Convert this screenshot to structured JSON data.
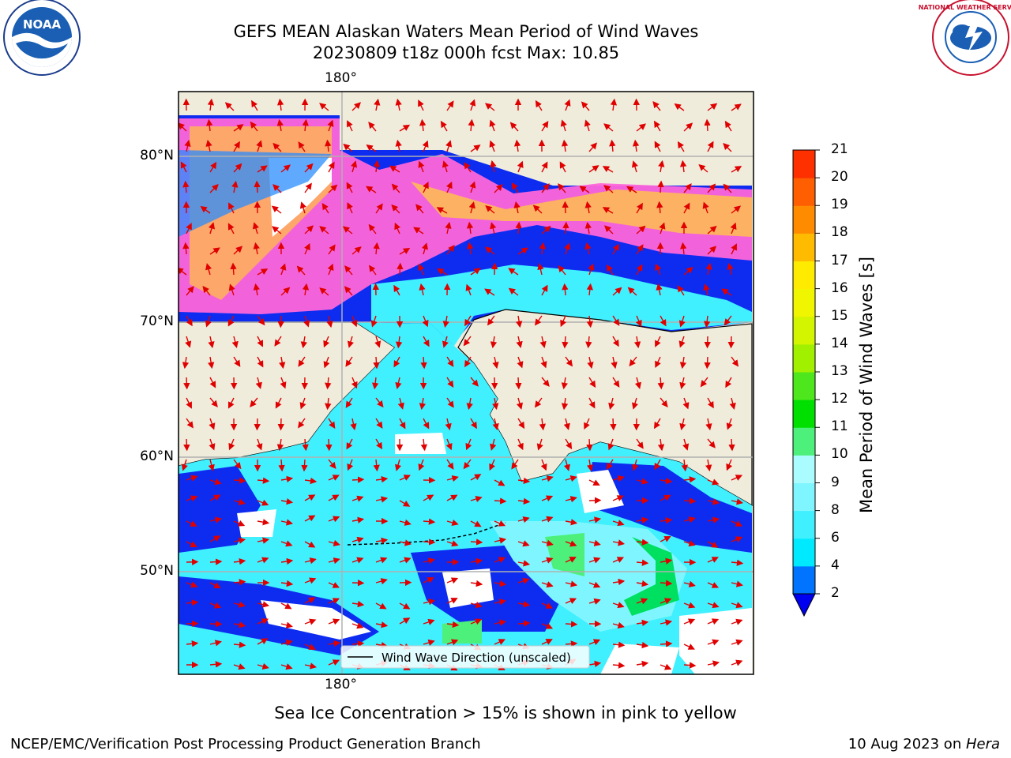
{
  "header": {
    "title_line1": "GEFS MEAN Alaskan Waters Mean Period of Wind Waves",
    "title_line2": "20230809 t18z 000h fcst   Max: 10.85"
  },
  "logos": {
    "left": {
      "icon": "noaa-logo",
      "text": "NOAA"
    },
    "right": {
      "icon": "nws-logo",
      "text": "NATIONAL WEATHER SERVICE"
    }
  },
  "map": {
    "lon_labels": {
      "top": "180°",
      "bottom": "180°"
    },
    "lat_labels": [
      "80°N",
      "70°N",
      "60°N",
      "50°N"
    ],
    "legend": "Wind Wave Direction (unscaled)",
    "arrow_color": "#e00000",
    "land_color": "#efecdc"
  },
  "colorbar": {
    "axis_label": "Mean Period of Wind Waves [s]",
    "ticks": [
      "2",
      "4",
      "6",
      "8",
      "9",
      "10",
      "11",
      "12",
      "13",
      "14",
      "15",
      "16",
      "17",
      "18",
      "19",
      "20",
      "21"
    ],
    "colors": [
      "#0073ff",
      "#00eaff",
      "#40f0ff",
      "#7ff6ff",
      "#aafcff",
      "#4cf07a",
      "#00e000",
      "#4ee61c",
      "#a0f000",
      "#d4f500",
      "#f0f500",
      "#ffeb00",
      "#ffbb00",
      "#ff8c00",
      "#ff5f00",
      "#ff3000",
      "#ff0000"
    ],
    "extend_color": "#0000f0"
  },
  "note": "Sea Ice Concentration > 15% is shown in pink to yellow",
  "footer": {
    "left": "NCEP/EMC/Verification Post Processing Product Generation Branch",
    "right_date": "10 Aug 2023 on ",
    "right_host": "Hera"
  }
}
